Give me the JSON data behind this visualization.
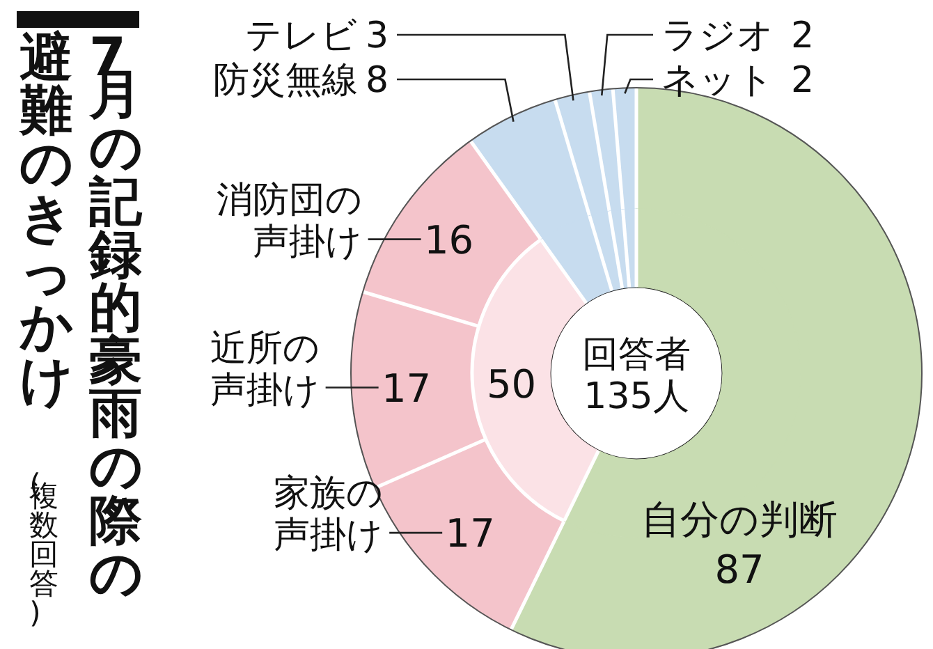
{
  "chart_data": [
    {
      "type": "donut",
      "title": "7月の記録的豪雨の際の",
      "subtitle": "避難のきっかけ",
      "categories": [
        "自分の判断",
        "家族の声掛け",
        "近所の声掛け",
        "消防団の声掛け",
        "防災無線",
        "テレビ",
        "ラジオ",
        "ネット"
      ],
      "values": [
        87,
        17,
        17,
        16,
        8,
        3,
        2,
        2
      ],
      "colors": [
        "#c8dcb2",
        "#f4c4cb",
        "#f4c4cb",
        "#f4c4cb",
        "#c7dcef",
        "#c7dcef",
        "#c7dcef",
        "#c7dcef"
      ],
      "annotations": [
        "(複数回答)",
        "回答者",
        "135人"
      ],
      "data_labels": true
    },
    {
      "type": "donut",
      "categories": [
        null,
        null,
        null,
        null,
        null,
        null
      ],
      "values": [
        87,
        50,
        8,
        3,
        2,
        2
      ],
      "colors": [
        "#c8dcb2",
        "#fbe2e6",
        "#c7dcef",
        "#c7dcef",
        "#c7dcef",
        "#c7dcef"
      ],
      "value_labels": [
        null,
        "50",
        null,
        null,
        null,
        null
      ]
    }
  ]
}
